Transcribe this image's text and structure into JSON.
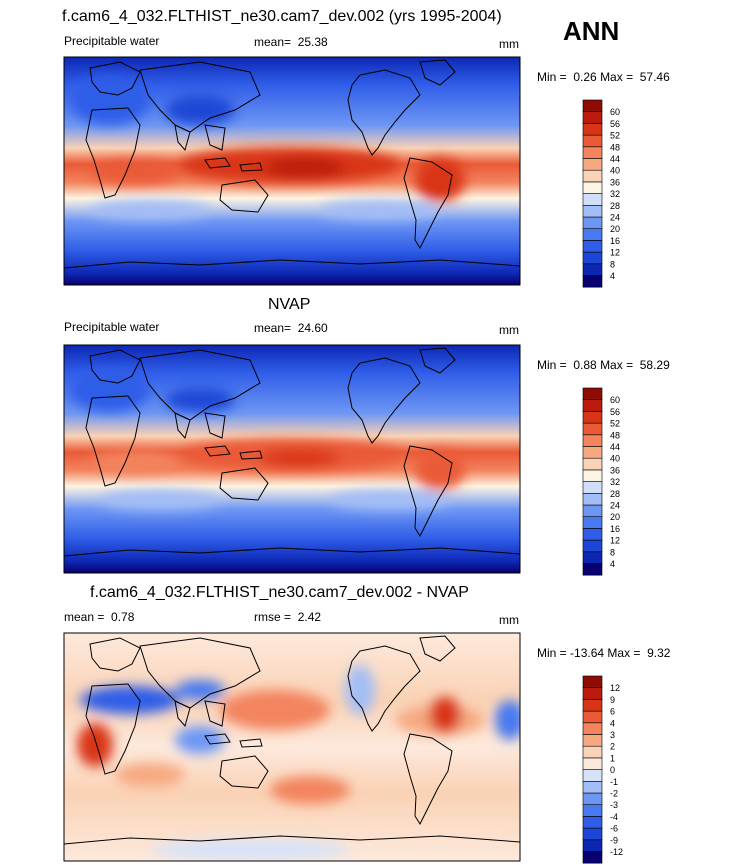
{
  "header": {
    "title": "f.cam6_4_032.FLTHIST_ne30.cam7_dev.002 (yrs 1995-2004)",
    "season": "ANN"
  },
  "colors": {
    "abs_scale": [
      "#08006e",
      "#0c27b4",
      "#1c46d6",
      "#2f5de8",
      "#4779f0",
      "#6e97f4",
      "#a3bdf6",
      "#cfdefa",
      "#fdf4e3",
      "#fad2b5",
      "#f6a981",
      "#f3845e",
      "#ea5a37",
      "#d93416",
      "#bb1b0c",
      "#8d0d04"
    ],
    "diff_scale": [
      "#08006e",
      "#0c27b4",
      "#1c46d6",
      "#2f5de8",
      "#4779f0",
      "#6e97f4",
      "#a3bdf6",
      "#d5e3fa",
      "#fde9dc",
      "#fad2b5",
      "#f6a981",
      "#f3845e",
      "#ea5a37",
      "#d93416",
      "#bb1b0c",
      "#8d0d04"
    ],
    "land_outline": "#000000"
  },
  "chart_data": [
    {
      "type": "heatmap",
      "panel": "model",
      "left_label": "Precipitable water",
      "mean_label": "mean=",
      "mean": "25.38",
      "units": "mm",
      "min_label": "Min =",
      "min": "0.26",
      "max_label": "Max =",
      "max": "57.46",
      "levels": [
        "4",
        "8",
        "12",
        "16",
        "20",
        "24",
        "28",
        "32",
        "36",
        "40",
        "44",
        "48",
        "52",
        "56",
        "60"
      ]
    },
    {
      "type": "heatmap",
      "panel": "obs",
      "title": "NVAP",
      "left_label": "Precipitable water",
      "mean_label": "mean=",
      "mean": "24.60",
      "units": "mm",
      "min_label": "Min =",
      "min": "0.88",
      "max_label": "Max =",
      "max": "58.29",
      "levels": [
        "4",
        "8",
        "12",
        "16",
        "20",
        "24",
        "28",
        "32",
        "36",
        "40",
        "44",
        "48",
        "52",
        "56",
        "60"
      ]
    },
    {
      "type": "heatmap",
      "panel": "difference",
      "title": "f.cam6_4_032.FLTHIST_ne30.cam7_dev.002 - NVAP",
      "mean_label": "mean =",
      "mean": "0.78",
      "rmse_label": "rmse =",
      "rmse": "2.42",
      "units": "mm",
      "min_label": "Min =",
      "min": "-13.64",
      "max_label": "Max =",
      "max": "9.32",
      "levels": [
        "-12",
        "-9",
        "-6",
        "-4",
        "-3",
        "-2",
        "-1",
        "0",
        "1",
        "2",
        "3",
        "4",
        "6",
        "9",
        "12"
      ]
    }
  ]
}
